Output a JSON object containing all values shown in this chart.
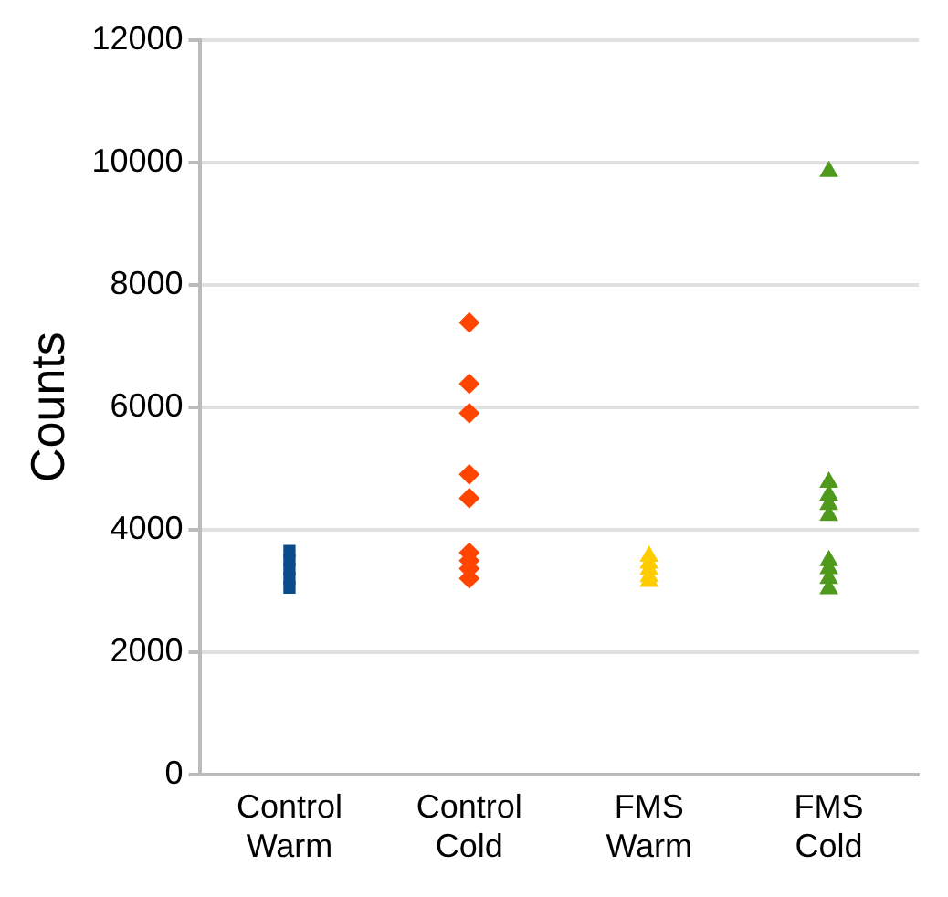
{
  "chart_data": {
    "type": "scatter",
    "ylabel": "Counts",
    "categories": [
      "Control Warm",
      "Control Cold",
      "FMS Warm",
      "FMS Cold"
    ],
    "ylim": [
      0,
      12000
    ],
    "yticks": [
      0,
      2000,
      4000,
      6000,
      8000,
      10000,
      12000
    ],
    "grid": "y",
    "legend": false,
    "series": [
      {
        "color": "#0b4a8b",
        "marker": "square",
        "x": [
          "Control Warm",
          "Control Warm",
          "Control Warm",
          "Control Warm",
          "Control Warm"
        ],
        "values": [
          3050,
          3200,
          3350,
          3500,
          3650
        ]
      },
      {
        "color": "#ff4500",
        "marker": "diamond",
        "x": [
          "Control Cold",
          "Control Cold",
          "Control Cold",
          "Control Cold",
          "Control Cold",
          "Control Cold",
          "Control Cold",
          "Control Cold",
          "Control Cold"
        ],
        "values": [
          7380,
          6380,
          5900,
          4900,
          4510,
          3620,
          3490,
          3360,
          3200
        ]
      },
      {
        "color": "#ffcc00",
        "marker": "triangle",
        "x": [
          "FMS Warm",
          "FMS Warm",
          "FMS Warm",
          "FMS Warm",
          "FMS Warm"
        ],
        "values": [
          3560,
          3450,
          3350,
          3230,
          3150
        ]
      },
      {
        "color": "#4f9a1c",
        "marker": "triangle",
        "x": [
          "FMS Cold",
          "FMS Cold",
          "FMS Cold",
          "FMS Cold",
          "FMS Cold",
          "FMS Cold",
          "FMS Cold",
          "FMS Cold",
          "FMS Cold"
        ],
        "values": [
          9850,
          4770,
          4560,
          4410,
          4230,
          3490,
          3360,
          3200,
          3030
        ]
      }
    ]
  }
}
